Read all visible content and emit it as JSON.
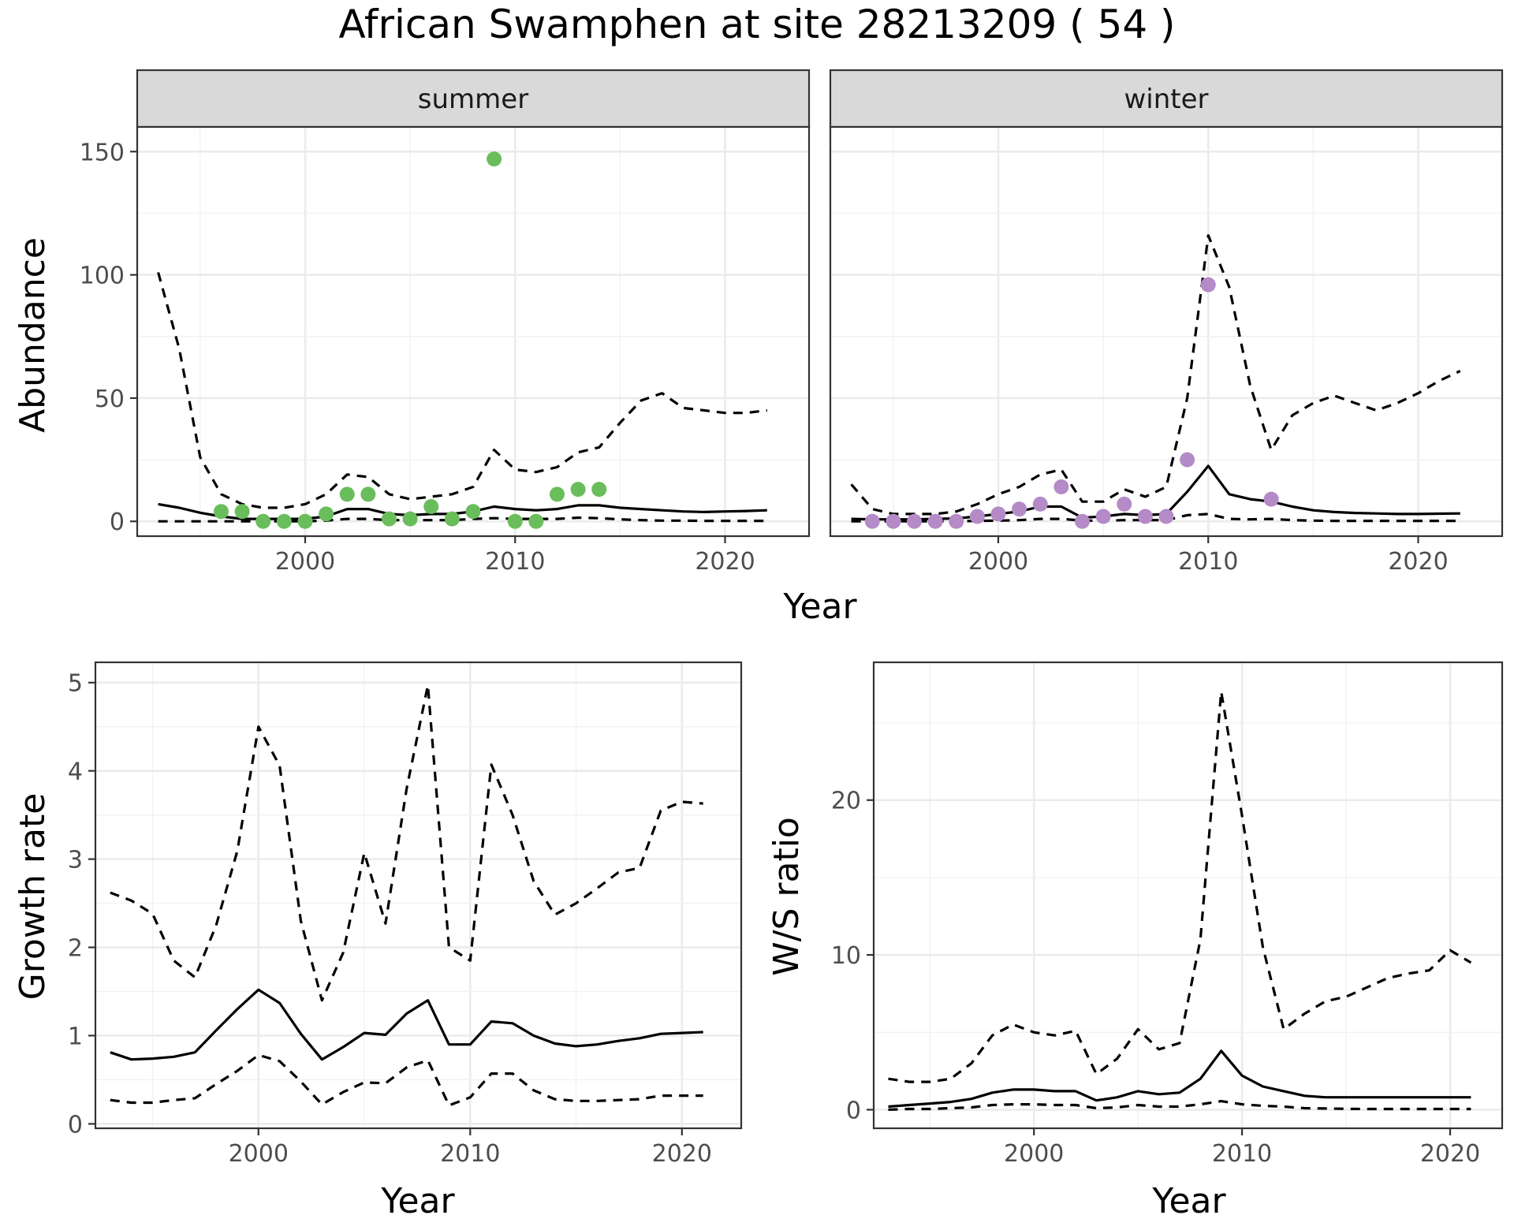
{
  "title": "African Swamphen at site 28213209 ( 54 )",
  "colors": {
    "summer_points": "#6abd5b",
    "winter_points": "#b48ac7",
    "lines": "#000000",
    "strip_bg": "#d9d9d9",
    "panel_border": "#333333",
    "grid": "#ebebeb"
  },
  "chart_data": [
    {
      "type": "line",
      "facet": "summer",
      "xlabel": "Year",
      "ylabel": "Abundance",
      "xlim": [
        1992,
        2024
      ],
      "ylim": [
        -6,
        160
      ],
      "xticks": [
        2000,
        2010,
        2020
      ],
      "yticks": [
        0,
        50,
        100,
        150
      ],
      "grid": true,
      "points": {
        "x": [
          1996,
          1997,
          1998,
          1999,
          2000,
          2001,
          2002,
          2003,
          2004,
          2005,
          2006,
          2007,
          2008,
          2009,
          2010,
          2011,
          2012,
          2013,
          2014
        ],
        "y": [
          4,
          4,
          0,
          0,
          0,
          3,
          11,
          11,
          1,
          1,
          6,
          1,
          4,
          147,
          0,
          0,
          11,
          13,
          13
        ]
      },
      "series": [
        {
          "style": "solid",
          "x": [
            1993,
            1994,
            1995,
            1996,
            1997,
            1998,
            1999,
            2000,
            2001,
            2002,
            2003,
            2004,
            2005,
            2006,
            2007,
            2008,
            2009,
            2010,
            2011,
            2012,
            2013,
            2014,
            2015,
            2016,
            2017,
            2018,
            2019,
            2020,
            2021,
            2022
          ],
          "y": [
            7,
            5.5,
            3.5,
            2,
            1,
            1,
            1,
            1,
            2,
            5,
            5,
            3,
            2.5,
            3,
            3,
            4,
            6,
            5,
            4.5,
            5,
            6.5,
            6.5,
            5.5,
            5,
            4.5,
            4,
            3.8,
            4,
            4.2,
            4.5
          ]
        },
        {
          "style": "dashed",
          "x": [
            1993,
            1994,
            1995,
            1996,
            1997,
            1998,
            1999,
            2000,
            2001,
            2002,
            2003,
            2004,
            2005,
            2006,
            2007,
            2008,
            2009,
            2010,
            2011,
            2012,
            2013,
            2014,
            2015,
            2016,
            2017,
            2018,
            2019,
            2020,
            2021,
            2022
          ],
          "y": [
            101,
            70,
            26,
            11,
            7,
            5.5,
            5.5,
            7,
            11,
            19,
            18,
            11,
            9,
            10,
            11,
            14,
            29,
            21,
            20,
            22,
            28,
            30,
            40,
            49,
            52,
            46,
            45,
            44,
            44,
            45
          ]
        },
        {
          "style": "dashed",
          "x": [
            1993,
            1994,
            1995,
            1996,
            1997,
            1998,
            1999,
            2000,
            2001,
            2002,
            2003,
            2004,
            2005,
            2006,
            2007,
            2008,
            2009,
            2010,
            2011,
            2012,
            2013,
            2014,
            2015,
            2016,
            2017,
            2018,
            2019,
            2020,
            2021,
            2022
          ],
          "y": [
            0,
            0,
            0,
            0,
            0,
            0,
            0,
            0,
            0.3,
            1,
            1,
            0.5,
            0.5,
            0.5,
            0.5,
            1,
            1.3,
            1,
            1,
            1,
            1.5,
            1.3,
            0.8,
            0.5,
            0.3,
            0.3,
            0.2,
            0.2,
            0.2,
            0.2
          ]
        }
      ]
    },
    {
      "type": "line",
      "facet": "winter",
      "xlabel": "Year",
      "ylabel": "",
      "xlim": [
        1992,
        2024
      ],
      "ylim": [
        -6,
        160
      ],
      "xticks": [
        2000,
        2010,
        2020
      ],
      "yticks": [],
      "grid": true,
      "points": {
        "x": [
          1994,
          1995,
          1996,
          1997,
          1998,
          1999,
          2000,
          2001,
          2002,
          2003,
          2004,
          2005,
          2006,
          2007,
          2008,
          2009,
          2010,
          2013
        ],
        "y": [
          0,
          0,
          0,
          0,
          0,
          2,
          3,
          5,
          7,
          14,
          0,
          2,
          7,
          2,
          2,
          25,
          96,
          9
        ]
      },
      "series": [
        {
          "style": "solid",
          "x": [
            1993,
            1994,
            1995,
            1996,
            1997,
            1998,
            1999,
            2000,
            2001,
            2002,
            2003,
            2004,
            2005,
            2006,
            2007,
            2008,
            2009,
            2010,
            2011,
            2012,
            2013,
            2014,
            2015,
            2016,
            2017,
            2018,
            2019,
            2020,
            2021,
            2022
          ],
          "y": [
            1,
            0.8,
            0.8,
            0.8,
            1,
            1.2,
            2,
            3,
            4,
            6,
            6,
            1.5,
            2,
            3,
            2.5,
            3,
            12,
            22.5,
            11,
            9,
            8,
            6,
            4.5,
            3.8,
            3.4,
            3.2,
            3,
            3,
            3.1,
            3.2
          ]
        },
        {
          "style": "dashed",
          "x": [
            1993,
            1994,
            1995,
            1996,
            1997,
            1998,
            1999,
            2000,
            2001,
            2002,
            2003,
            2004,
            2005,
            2006,
            2007,
            2008,
            2009,
            2010,
            2011,
            2012,
            2013,
            2014,
            2015,
            2016,
            2017,
            2018,
            2019,
            2020,
            2021,
            2022
          ],
          "y": [
            15,
            5,
            3,
            3,
            3,
            4,
            7,
            11,
            14,
            19,
            21,
            8,
            8,
            13,
            10,
            14,
            50,
            116,
            95,
            55,
            29,
            43,
            48,
            51,
            48,
            45,
            48,
            52,
            57,
            61
          ]
        },
        {
          "style": "dashed",
          "x": [
            1993,
            1994,
            1995,
            1996,
            1997,
            1998,
            1999,
            2000,
            2001,
            2002,
            2003,
            2004,
            2005,
            2006,
            2007,
            2008,
            2009,
            2010,
            2011,
            2012,
            2013,
            2014,
            2015,
            2016,
            2017,
            2018,
            2019,
            2020,
            2021,
            2022
          ],
          "y": [
            0,
            0,
            0,
            0,
            0,
            0,
            0.2,
            0.3,
            0.5,
            1,
            1,
            0.3,
            0.3,
            0.5,
            0.5,
            0.5,
            2.5,
            3,
            1,
            0.8,
            1,
            0.5,
            0.3,
            0.2,
            0.2,
            0.2,
            0.2,
            0.2,
            0.2,
            0.2
          ]
        }
      ]
    },
    {
      "type": "line",
      "facet": "",
      "xlabel": "Year",
      "ylabel": "Growth rate",
      "xlim": [
        1992.3,
        2022.8
      ],
      "ylim": [
        -0.05,
        5.23
      ],
      "xticks": [
        2000,
        2010,
        2020
      ],
      "yticks": [
        0,
        1,
        2,
        3,
        4,
        5
      ],
      "grid": true,
      "series": [
        {
          "style": "solid",
          "x": [
            1993,
            1994,
            1995,
            1996,
            1997,
            1998,
            1999,
            2000,
            2001,
            2002,
            2003,
            2004,
            2005,
            2006,
            2007,
            2008,
            2009,
            2010,
            2011,
            2012,
            2013,
            2014,
            2015,
            2016,
            2017,
            2018,
            2019,
            2020,
            2021
          ],
          "y": [
            0.81,
            0.73,
            0.74,
            0.76,
            0.81,
            1.06,
            1.3,
            1.52,
            1.37,
            1.02,
            0.73,
            0.87,
            1.03,
            1.01,
            1.25,
            1.4,
            0.9,
            0.9,
            1.16,
            1.14,
            1.0,
            0.91,
            0.88,
            0.9,
            0.94,
            0.97,
            1.02,
            1.03,
            1.04
          ]
        },
        {
          "style": "dashed",
          "x": [
            1993,
            1994,
            1995,
            1996,
            1997,
            1998,
            1999,
            2000,
            2001,
            2002,
            2003,
            2004,
            2005,
            2006,
            2007,
            2008,
            2009,
            2010,
            2011,
            2012,
            2013,
            2014,
            2015,
            2016,
            2017,
            2018,
            2019,
            2020,
            2021
          ],
          "y": [
            2.62,
            2.53,
            2.38,
            1.85,
            1.66,
            2.25,
            3.09,
            4.5,
            4.06,
            2.3,
            1.4,
            1.94,
            3.07,
            2.27,
            3.8,
            4.97,
            2.0,
            1.85,
            4.07,
            3.5,
            2.75,
            2.37,
            2.5,
            2.67,
            2.85,
            2.9,
            3.55,
            3.65,
            3.63
          ]
        },
        {
          "style": "dashed",
          "x": [
            1993,
            1994,
            1995,
            1996,
            1997,
            1998,
            1999,
            2000,
            2001,
            2002,
            2003,
            2004,
            2005,
            2006,
            2007,
            2008,
            2009,
            2010,
            2011,
            2012,
            2013,
            2014,
            2015,
            2016,
            2017,
            2018,
            2019,
            2020,
            2021
          ],
          "y": [
            0.27,
            0.24,
            0.24,
            0.27,
            0.29,
            0.45,
            0.6,
            0.78,
            0.71,
            0.48,
            0.22,
            0.36,
            0.47,
            0.46,
            0.64,
            0.72,
            0.21,
            0.3,
            0.57,
            0.57,
            0.38,
            0.28,
            0.26,
            0.26,
            0.27,
            0.28,
            0.32,
            0.32,
            0.32
          ]
        }
      ]
    },
    {
      "type": "line",
      "facet": "",
      "xlabel": "Year",
      "ylabel": "W/S ratio",
      "xlim": [
        1992.3,
        2022.5
      ],
      "ylim": [
        -1.2,
        28.9
      ],
      "xticks": [
        2000,
        2010,
        2020
      ],
      "yticks": [
        0,
        10,
        20
      ],
      "grid": true,
      "series": [
        {
          "style": "solid",
          "x": [
            1993,
            1994,
            1995,
            1996,
            1997,
            1998,
            1999,
            2000,
            2001,
            2002,
            2003,
            2004,
            2005,
            2006,
            2007,
            2008,
            2009,
            2010,
            2011,
            2012,
            2013,
            2014,
            2015,
            2016,
            2017,
            2018,
            2019,
            2020,
            2021
          ],
          "y": [
            0.2,
            0.3,
            0.4,
            0.5,
            0.7,
            1.1,
            1.3,
            1.3,
            1.2,
            1.2,
            0.6,
            0.8,
            1.2,
            1.0,
            1.1,
            2.0,
            3.8,
            2.2,
            1.5,
            1.2,
            0.9,
            0.8,
            0.8,
            0.8,
            0.8,
            0.8,
            0.8,
            0.8,
            0.8
          ]
        },
        {
          "style": "dashed",
          "x": [
            1993,
            1994,
            1995,
            1996,
            1997,
            1998,
            1999,
            2000,
            2001,
            2002,
            2003,
            2004,
            2005,
            2006,
            2007,
            2008,
            2009,
            2010,
            2011,
            2012,
            2013,
            2014,
            2015,
            2016,
            2017,
            2018,
            2019,
            2020,
            2021
          ],
          "y": [
            2.0,
            1.8,
            1.8,
            2.0,
            3.0,
            4.8,
            5.5,
            5.0,
            4.8,
            5.1,
            2.3,
            3.3,
            5.2,
            3.9,
            4.3,
            11.0,
            27.0,
            19.0,
            10.5,
            5.2,
            6.2,
            7.0,
            7.3,
            7.9,
            8.5,
            8.8,
            9.0,
            10.3,
            9.5
          ]
        },
        {
          "style": "dashed",
          "x": [
            1993,
            1994,
            1995,
            1996,
            1997,
            1998,
            1999,
            2000,
            2001,
            2002,
            2003,
            2004,
            2005,
            2006,
            2007,
            2008,
            2009,
            2010,
            2011,
            2012,
            2013,
            2014,
            2015,
            2016,
            2017,
            2018,
            2019,
            2020,
            2021
          ],
          "y": [
            0.0,
            0.05,
            0.05,
            0.1,
            0.15,
            0.3,
            0.35,
            0.35,
            0.3,
            0.3,
            0.1,
            0.15,
            0.3,
            0.2,
            0.2,
            0.35,
            0.55,
            0.35,
            0.25,
            0.2,
            0.1,
            0.08,
            0.06,
            0.05,
            0.05,
            0.05,
            0.05,
            0.05,
            0.05
          ]
        }
      ]
    }
  ]
}
